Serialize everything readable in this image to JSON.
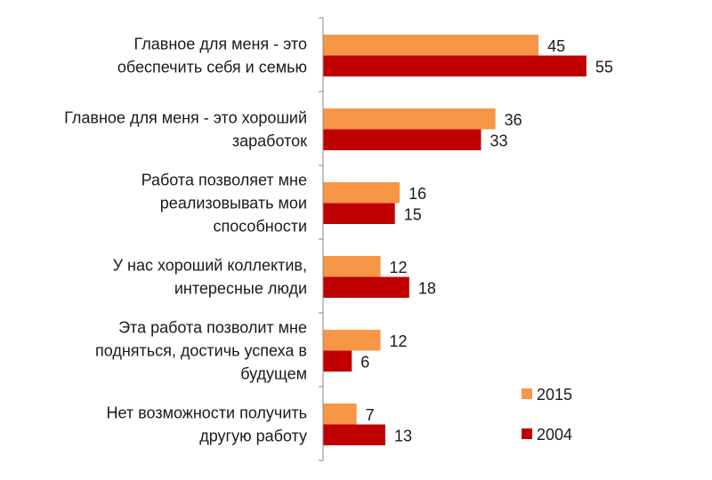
{
  "chart_data": {
    "type": "bar",
    "orientation": "horizontal",
    "title": "",
    "xlabel": "",
    "ylabel": "",
    "xlim": [
      0,
      80
    ],
    "grid": false,
    "legend_position": "bottom-right",
    "categories": [
      [
        "Главное для меня - это",
        "обеспечить себя и семью"
      ],
      [
        "Главное для меня - это хороший",
        "заработок"
      ],
      [
        "Работа позволяет мне",
        "реализовывать мои",
        "способности"
      ],
      [
        "У нас хороший коллектив,",
        "интересные люди"
      ],
      [
        "Эта работа позволит мне",
        "подняться, достичь успеха в",
        "будущем"
      ],
      [
        "Нет возможности получить",
        "другую работу"
      ]
    ],
    "series": [
      {
        "name": "2015",
        "color": "#F79646",
        "values": [
          45,
          36,
          16,
          12,
          12,
          7
        ]
      },
      {
        "name": "2004",
        "color": "#C00000",
        "values": [
          55,
          33,
          15,
          18,
          6,
          13
        ]
      }
    ]
  }
}
